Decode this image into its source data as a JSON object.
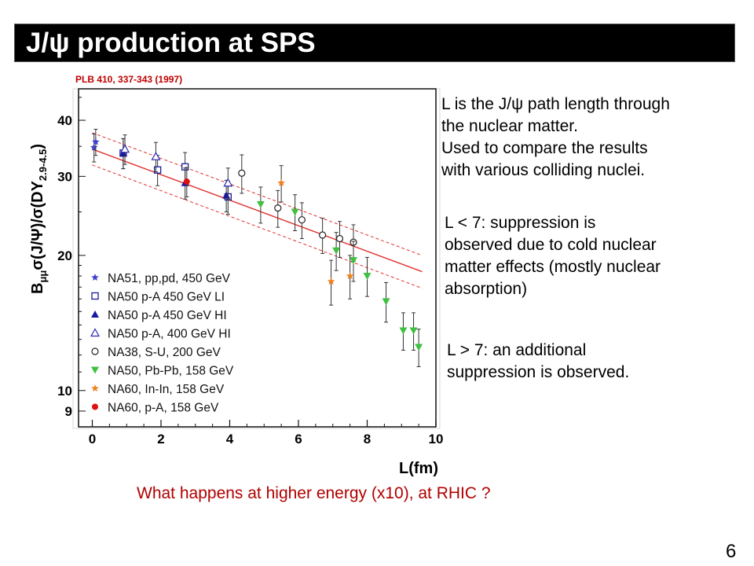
{
  "slide": {
    "title": "J/ψ production at SPS",
    "reference": "PLB 410, 337-343 (1997)",
    "note1": "L is the J/ψ path length through\nthe nuclear matter.\nUsed to compare the results\nwith various colliding nuclei.",
    "note2": "L < 7: suppression is\nobserved due to cold nuclear\nmatter effects (mostly nuclear\nabsorption)",
    "note3": "L > 7: an additional\nsuppression is observed.",
    "question": "What happens at higher energy (x10), at RHIC ?",
    "page_number": "6"
  },
  "chart_data": {
    "type": "scatter",
    "xlabel": "L(fm)",
    "ylabel": "B_μμ σ(J/Ψ)/σ(DY_2.9-4.5)",
    "xlim": [
      -0.4,
      10
    ],
    "ylim": [
      8.3,
      47
    ],
    "yscale": "log",
    "xticks": [
      0,
      2,
      4,
      6,
      8,
      10
    ],
    "yticks": [
      9,
      10,
      20,
      30,
      40
    ],
    "colors": {
      "fit": "#e03030",
      "errorbar": "#333333"
    },
    "fit": {
      "line": [
        [
          0,
          34.5
        ],
        [
          9.6,
          18.4
        ]
      ],
      "upper": [
        [
          0,
          37.5
        ],
        [
          9.6,
          20.0
        ]
      ],
      "lower": [
        [
          0,
          31.8
        ],
        [
          9.6,
          16.9
        ]
      ]
    },
    "series": [
      {
        "name": "NA51, pp,pd, 450 GeV",
        "marker": "star",
        "color": "#4040d0",
        "points": [
          [
            0.05,
            34.8,
            2.5
          ],
          [
            0.1,
            35.8,
            2.4
          ]
        ]
      },
      {
        "name": "NA50 p-A 450 GeV LI",
        "marker": "square-open",
        "color": "#1a1a9a",
        "points": [
          [
            0.9,
            33.8,
            2.6
          ],
          [
            1.9,
            31.0,
            2.4
          ],
          [
            2.7,
            31.5,
            2.4
          ],
          [
            3.95,
            27.0,
            2.3
          ]
        ]
      },
      {
        "name": "NA50 p-A 450 GeV HI",
        "marker": "triangle",
        "color": "#1a1aa0",
        "points": [
          [
            0.9,
            33.8,
            2.6
          ],
          [
            2.7,
            29.0,
            2.3
          ],
          [
            3.9,
            27.2,
            2.2
          ]
        ]
      },
      {
        "name": "NA50 p-A, 400 GeV HI",
        "marker": "triangle-open",
        "color": "#2a2ab0",
        "points": [
          [
            0.95,
            34.5,
            2.6
          ],
          [
            1.85,
            33.2,
            2.5
          ],
          [
            3.95,
            29.0,
            2.3
          ]
        ]
      },
      {
        "name": "NA38, S-U, 200 GeV",
        "marker": "circle-open",
        "color": "#222222",
        "points": [
          [
            4.35,
            30.5,
            3.0
          ],
          [
            5.4,
            25.5,
            2.4
          ],
          [
            6.1,
            24.0,
            2.2
          ],
          [
            6.7,
            22.2,
            2.0
          ],
          [
            7.2,
            21.8,
            2.0
          ],
          [
            7.6,
            21.4,
            2.0
          ]
        ]
      },
      {
        "name": "NA50, Pb-Pb, 158 GeV",
        "marker": "triangle-down",
        "color": "#40c040",
        "points": [
          [
            4.9,
            26.0,
            2.4
          ],
          [
            5.9,
            25.0,
            2.3
          ],
          [
            7.1,
            20.5,
            2.0
          ],
          [
            7.6,
            19.5,
            2.0
          ],
          [
            8.0,
            18.0,
            1.8
          ],
          [
            8.55,
            15.8,
            1.6
          ],
          [
            9.05,
            13.6,
            1.3
          ],
          [
            9.35,
            13.6,
            1.3
          ],
          [
            9.5,
            12.5,
            1.2
          ]
        ]
      },
      {
        "name": "NA60, In-In, 158 GeV",
        "marker": "star",
        "color": "#f08020",
        "points": [
          [
            5.5,
            29.0,
            2.7
          ],
          [
            6.95,
            17.5,
            2.0
          ],
          [
            7.5,
            18.0,
            2.0
          ]
        ]
      },
      {
        "name": "NA60, p-A, 158 GeV",
        "marker": "circle",
        "color": "#e01010",
        "points": [
          [
            2.75,
            29.2,
            2.2
          ]
        ]
      }
    ]
  }
}
